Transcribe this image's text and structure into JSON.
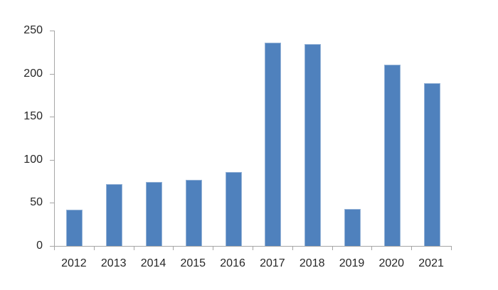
{
  "chart_data": {
    "type": "bar",
    "title": "",
    "xlabel": "",
    "ylabel": "",
    "categories": [
      "2012",
      "2013",
      "2014",
      "2015",
      "2016",
      "2017",
      "2018",
      "2019",
      "2020",
      "2021"
    ],
    "values": [
      42,
      72,
      74,
      77,
      86,
      236,
      234,
      43,
      210,
      189
    ],
    "ylim": [
      0,
      250
    ],
    "y_ticks": [
      0,
      50,
      100,
      150,
      200,
      250
    ],
    "grid": false,
    "legend": "none",
    "colors": {
      "bar_fill": "#4F81BD",
      "bar_border": "#95B3D7",
      "axis": "#A6A6A6",
      "tick_label": "#262626",
      "background": "#FFFFFF"
    }
  }
}
